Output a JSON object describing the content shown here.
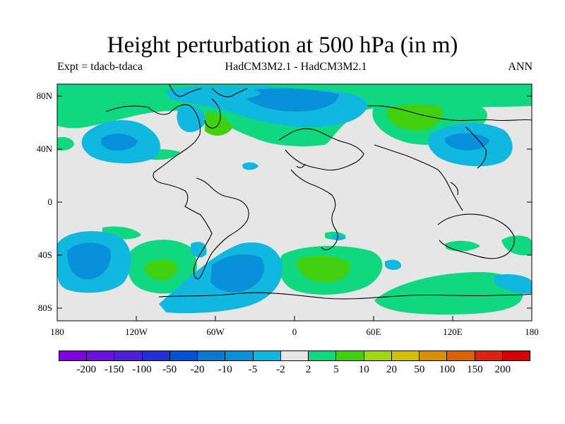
{
  "title": "Height perturbation at 500 hPa (in m)",
  "subtitle_left": "Expt = tdacb-tdaca",
  "subtitle_center": "HadCM3M2.1 - HadCM3M2.1",
  "subtitle_right": "ANN",
  "lat_labels": [
    "80N",
    "40N",
    "0",
    "40S",
    "80S"
  ],
  "lon_labels": [
    "180",
    "120W",
    "60W",
    "0",
    "60E",
    "120E",
    "180"
  ],
  "colorbar": {
    "labels": [
      "-200",
      "-150",
      "-100",
      "-50",
      "-20",
      "-10",
      "-5",
      "-2",
      "2",
      "5",
      "10",
      "20",
      "50",
      "100",
      "150",
      "200"
    ],
    "colors": [
      "#8000e0",
      "#6a10e0",
      "#5020d8",
      "#2030d8",
      "#0050d8",
      "#0878d0",
      "#0890d8",
      "#10b8e0",
      "#e6e6e6",
      "#10d880",
      "#40d010",
      "#a0d810",
      "#d0c000",
      "#d89000",
      "#e06000",
      "#e02010",
      "#d80000"
    ]
  },
  "colors": {
    "neutral": "#e6e6e6",
    "neg_light": "#10b8e0",
    "neg_mid": "#0890d8",
    "pos_light": "#10d880",
    "pos_mid": "#40d010"
  }
}
